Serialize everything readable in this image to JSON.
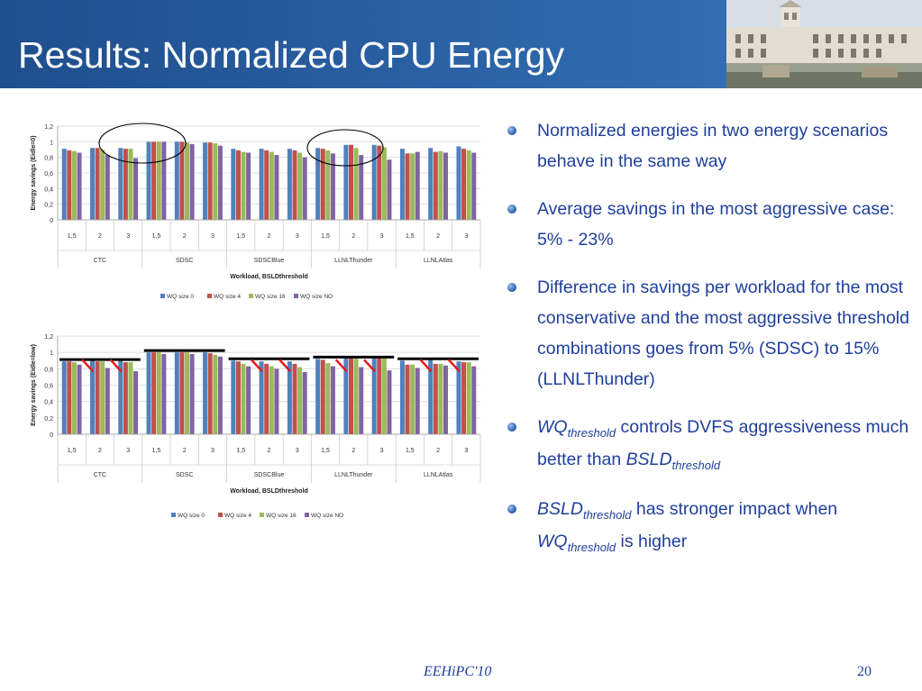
{
  "slide": {
    "title": "Results: Normalized CPU Energy",
    "footer": "EEHiPC'10",
    "page_number": "20"
  },
  "colors": {
    "title_bar": "#2a5fa3",
    "text": "#1f3f9c",
    "series": [
      "#4f81bd",
      "#c0504d",
      "#9bbb59",
      "#8064a2"
    ],
    "annotation_bar": "#000000",
    "annotation_slash": "#e81a1a"
  },
  "bullets": [
    {
      "parts": [
        "Normalized energies in two energy scenarios behave in the same way"
      ]
    },
    {
      "parts": [
        "Average savings in the most aggressive case: 5% - 23%"
      ]
    },
    {
      "parts": [
        "Difference in savings per workload for the most conservative and the most aggressive threshold combinations goes from 5% (SDSC) to 15% (LLNLThunder)"
      ]
    },
    {
      "parts": [
        "WQ",
        "threshold",
        " controls DVFS aggressiveness much better than ",
        "BSLD",
        "threshold"
      ]
    },
    {
      "parts": [
        "BSLD",
        "threshold",
        "  has stronger impact when ",
        "WQ",
        "threshold",
        " is higher"
      ]
    }
  ],
  "chart_data": [
    {
      "type": "bar",
      "ylabel": "Energy savings (Eidle=0)",
      "xlabel": "Workload, BSLDthreshold",
      "ylim": [
        0,
        1.2
      ],
      "yticks": [
        "0",
        "0,2",
        "0,4",
        "0,6",
        "0,8",
        "1",
        "1,2"
      ],
      "categories": [
        "1,5",
        "2",
        "3",
        "1,5",
        "2",
        "3",
        "1,5",
        "2",
        "3",
        "1,5",
        "2",
        "3",
        "1,5",
        "2",
        "3"
      ],
      "groups": [
        "CTC",
        "SDSC",
        "SDSCBlue",
        "LLNLThunder",
        "LLNLAtlas"
      ],
      "grid": true,
      "legend": "bottom",
      "series": [
        {
          "name": "WQ size  0",
          "values": [
            0.91,
            0.92,
            0.92,
            1.0,
            1.0,
            0.99,
            0.91,
            0.91,
            0.91,
            0.92,
            0.96,
            0.96,
            0.91,
            0.92,
            0.94
          ]
        },
        {
          "name": "WQ size  4",
          "values": [
            0.89,
            0.92,
            0.91,
            1.0,
            1.0,
            0.99,
            0.89,
            0.89,
            0.89,
            0.91,
            0.96,
            0.95,
            0.85,
            0.87,
            0.91
          ]
        },
        {
          "name": "WQ size  16",
          "values": [
            0.88,
            0.9,
            0.91,
            1.0,
            0.99,
            0.98,
            0.87,
            0.87,
            0.86,
            0.89,
            0.92,
            0.93,
            0.85,
            0.88,
            0.89
          ]
        },
        {
          "name": "WQ size  NO",
          "values": [
            0.86,
            0.83,
            0.79,
            1.0,
            0.97,
            0.95,
            0.86,
            0.83,
            0.8,
            0.85,
            0.83,
            0.77,
            0.87,
            0.86,
            0.86
          ]
        }
      ]
    },
    {
      "type": "bar",
      "ylabel": "Energy savings (Eidle=low)",
      "xlabel": "Workload, BSLDthreshold",
      "ylim": [
        0,
        1.2
      ],
      "yticks": [
        "0",
        "0,2",
        "0,4",
        "0,6",
        "0,8",
        "1",
        "1,2"
      ],
      "categories": [
        "1,5",
        "2",
        "3",
        "1,5",
        "2",
        "3",
        "1,5",
        "2",
        "3",
        "1,5",
        "2",
        "3",
        "1,5",
        "2",
        "3"
      ],
      "groups": [
        "CTC",
        "SDSC",
        "SDSCBlue",
        "LLNLThunder",
        "LLNLAtlas"
      ],
      "grid": true,
      "legend": "bottom",
      "series": [
        {
          "name": "WQ size  0",
          "values": [
            0.89,
            0.9,
            0.9,
            1.0,
            1.0,
            1.0,
            0.9,
            0.89,
            0.89,
            0.92,
            0.95,
            0.95,
            0.9,
            0.93,
            0.89
          ]
        },
        {
          "name": "WQ size  4",
          "values": [
            0.89,
            0.89,
            0.88,
            1.0,
            1.0,
            0.99,
            0.89,
            0.86,
            0.86,
            0.91,
            0.95,
            0.95,
            0.85,
            0.86,
            0.88
          ]
        },
        {
          "name": "WQ size  16",
          "values": [
            0.88,
            0.89,
            0.88,
            1.0,
            1.0,
            0.97,
            0.86,
            0.83,
            0.82,
            0.87,
            0.94,
            0.93,
            0.85,
            0.86,
            0.88
          ]
        },
        {
          "name": "WQ size  NO",
          "values": [
            0.85,
            0.81,
            0.77,
            0.98,
            0.98,
            0.95,
            0.83,
            0.8,
            0.76,
            0.83,
            0.82,
            0.78,
            0.81,
            0.84,
            0.83
          ]
        }
      ]
    }
  ]
}
